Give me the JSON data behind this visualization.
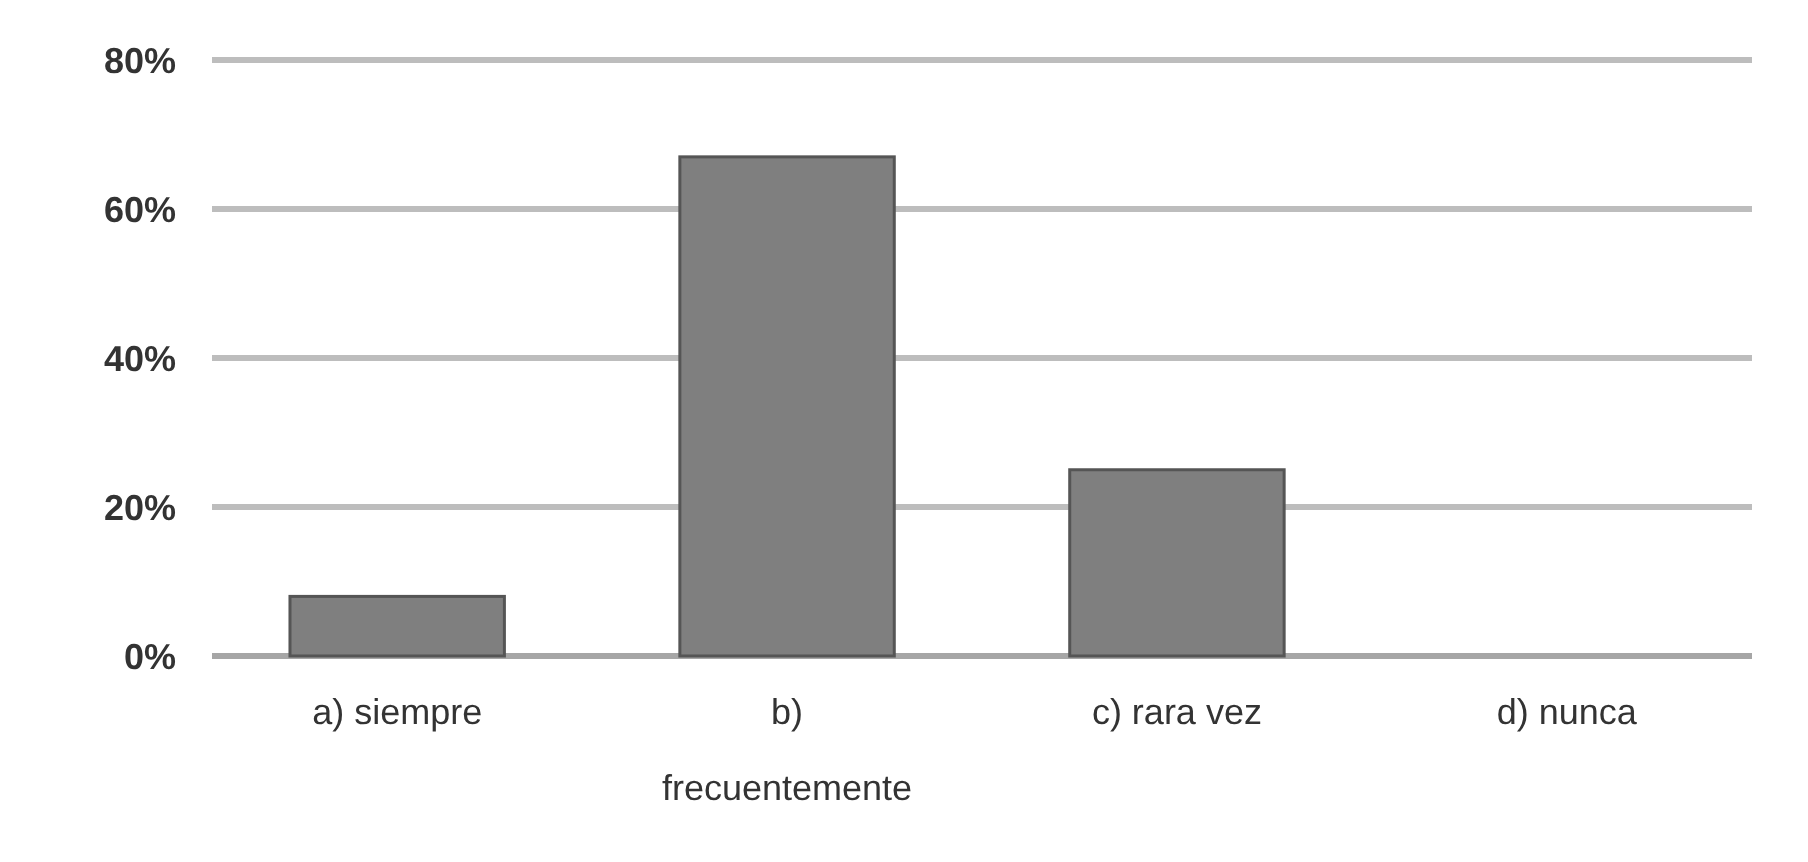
{
  "chart_data": {
    "type": "bar",
    "categories": [
      "a) siempre",
      "b) frecuentemente",
      "c) rara vez",
      "d) nunca"
    ],
    "values": [
      8,
      67,
      25,
      0
    ],
    "color": "#7f7f7f",
    "ylim": [
      0,
      80
    ],
    "yticks": [
      {
        "value": 0,
        "label": "0%"
      },
      {
        "value": 20,
        "label": "20%"
      },
      {
        "value": 40,
        "label": "40%"
      },
      {
        "value": 60,
        "label": "60%"
      },
      {
        "value": 80,
        "label": "80%"
      }
    ],
    "grid": "y"
  }
}
